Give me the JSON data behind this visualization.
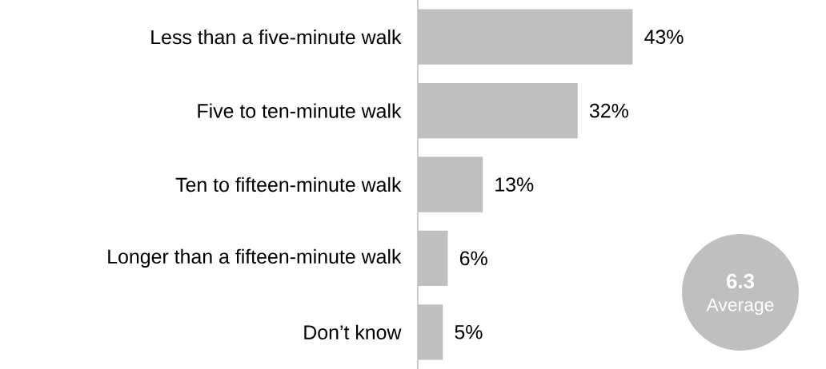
{
  "chart_data": {
    "type": "bar",
    "orientation": "horizontal",
    "categories": [
      "Less than a five-minute walk",
      "Five to ten-minute walk",
      "Ten to fifteen-minute walk",
      "Longer than a fifteen-minute walk",
      "Don’t know"
    ],
    "values": [
      43,
      32,
      13,
      6,
      5
    ],
    "value_labels": [
      "43%",
      "32%",
      "13%",
      "6%",
      "5%"
    ],
    "color": "#bfbfbf",
    "annotations": [
      "**6.3**",
      "Average"
    ]
  }
}
